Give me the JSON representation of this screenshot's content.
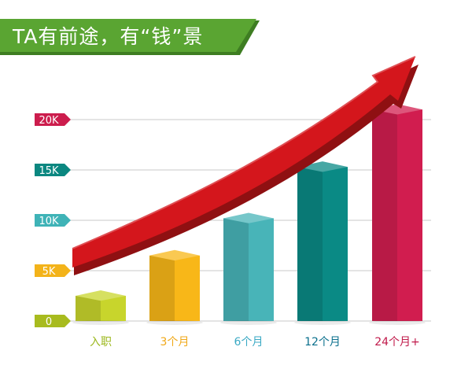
{
  "banner": {
    "title": "TA有前途，有“钱”景",
    "color": "#5aa532",
    "shadow_color": "#3e7d22"
  },
  "chart_data": {
    "type": "bar",
    "title": "TA有前途，有“钱”景",
    "xlabel": "",
    "ylabel": "",
    "categories": [
      "入职",
      "3个月",
      "6个月",
      "12个月",
      "24个月+"
    ],
    "values": [
      2500,
      6500,
      10200,
      15300,
      21000
    ],
    "ylim": [
      0,
      20000
    ],
    "yticks": [
      {
        "value": 0,
        "label": "0",
        "color": "#a8bb1e"
      },
      {
        "value": 5000,
        "label": "5K",
        "color": "#f3b31a"
      },
      {
        "value": 10000,
        "label": "10K",
        "color": "#3fb3b7"
      },
      {
        "value": 15000,
        "label": "15K",
        "color": "#0b8780"
      },
      {
        "value": 20000,
        "label": "20K",
        "color": "#cc1d4d"
      }
    ],
    "bar_colors": [
      "#c8d52c",
      "#f8b718",
      "#48b4b8",
      "#0a8a85",
      "#d11d4f"
    ],
    "category_label_colors": [
      "#9cb81e",
      "#f0a818",
      "#3aa9c4",
      "#0a6f8c",
      "#c0194a"
    ],
    "grid": true,
    "trend_arrow": {
      "color": "#d4161c",
      "dark_color": "#8f1012"
    }
  }
}
